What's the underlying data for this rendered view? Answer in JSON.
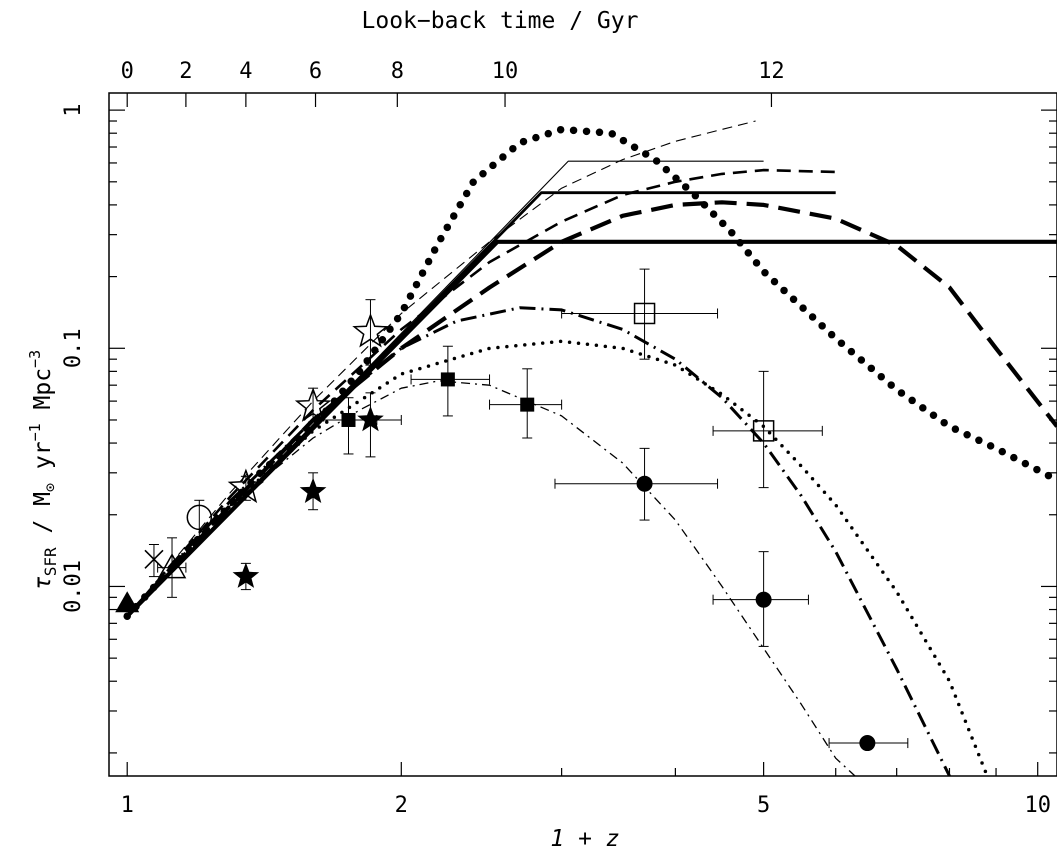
{
  "chart_data": {
    "type": "scatter",
    "title": "",
    "xlabel": "1 + z",
    "ylabel": "τSFR / M⊙ yr⁻¹ Mpc⁻³",
    "ylabel_parts": {
      "symbol": "τ",
      "subscript": "SFR",
      "units_start": " / M",
      "units_sun": "⊙",
      "units_yr": " yr",
      "exp_yr": "−1",
      "units_mpc": " Mpc",
      "exp_mpc": "−3"
    },
    "x2label": "Look−back time / Gyr",
    "x_scale": "log",
    "y_scale": "log",
    "xlim": [
      0.955,
      10.5
    ],
    "ylim": [
      0.0016,
      1.18
    ],
    "x_ticks": [
      1,
      2,
      5,
      10
    ],
    "x_tick_labels": [
      "1",
      "2",
      "5",
      "10"
    ],
    "y_ticks": [
      0.01,
      0.1,
      1
    ],
    "y_tick_labels": [
      "0.01",
      "0.1",
      "1"
    ],
    "top_axis_ticks": [
      {
        "label": "0",
        "one_plus_z": 1.0
      },
      {
        "label": "2",
        "one_plus_z": 1.16
      },
      {
        "label": "4",
        "one_plus_z": 1.35
      },
      {
        "label": "6",
        "one_plus_z": 1.61
      },
      {
        "label": "8",
        "one_plus_z": 1.98
      },
      {
        "label": "10",
        "one_plus_z": 2.6
      },
      {
        "label": "12",
        "one_plus_z": 5.1
      }
    ],
    "series": [
      {
        "marker": "filled-triangle",
        "points": [
          {
            "x": 1.0,
            "y": 0.0085
          }
        ]
      },
      {
        "marker": "cross",
        "points": [
          {
            "x": 1.07,
            "y": 0.013,
            "yerr": [
              0.011,
              0.015
            ]
          }
        ]
      },
      {
        "marker": "open-triangle",
        "points": [
          {
            "x": 1.12,
            "y": 0.012,
            "xerr": [
              1.08,
              1.16
            ],
            "yerr": [
              0.009,
              0.016
            ]
          }
        ]
      },
      {
        "marker": "open-circle",
        "points": [
          {
            "x": 1.2,
            "y": 0.0195,
            "yerr": [
              0.016,
              0.023
            ]
          }
        ]
      },
      {
        "marker": "open-star",
        "points": [
          {
            "x": 1.35,
            "y": 0.026,
            "yerr": [
              0.023,
              0.029
            ]
          },
          {
            "x": 1.6,
            "y": 0.057,
            "yerr": [
              0.049,
              0.068
            ]
          },
          {
            "x": 1.85,
            "y": 0.117,
            "yerr": [
              0.085,
              0.16
            ]
          }
        ]
      },
      {
        "marker": "filled-star",
        "points": [
          {
            "x": 1.35,
            "y": 0.011,
            "yerr": [
              0.0097,
              0.0125
            ]
          },
          {
            "x": 1.6,
            "y": 0.025,
            "yerr": [
              0.021,
              0.03
            ]
          },
          {
            "x": 1.85,
            "y": 0.05,
            "xerr": [
              1.75,
              2.0
            ],
            "yerr": [
              0.035,
              0.065
            ]
          }
        ]
      },
      {
        "marker": "filled-square",
        "points": [
          {
            "x": 1.75,
            "y": 0.05,
            "xerr": [
              1.62,
              1.88
            ],
            "yerr": [
              0.036,
              0.062
            ]
          },
          {
            "x": 2.25,
            "y": 0.074,
            "xerr": [
              2.05,
              2.5
            ],
            "yerr": [
              0.052,
              0.102
            ]
          },
          {
            "x": 2.75,
            "y": 0.058,
            "xerr": [
              2.5,
              3.0
            ],
            "yerr": [
              0.042,
              0.082
            ]
          }
        ]
      },
      {
        "marker": "open-square",
        "points": [
          {
            "x": 3.7,
            "y": 0.14,
            "xerr": [
              3.0,
              4.45
            ],
            "yerr": [
              0.09,
              0.215
            ]
          },
          {
            "x": 5.0,
            "y": 0.045,
            "xerr": [
              4.4,
              5.8
            ],
            "yerr": [
              0.026,
              0.08
            ]
          }
        ]
      },
      {
        "marker": "filled-circle",
        "points": [
          {
            "x": 3.7,
            "y": 0.027,
            "xerr": [
              2.95,
              4.45
            ],
            "yerr": [
              0.019,
              0.038
            ]
          },
          {
            "x": 5.0,
            "y": 0.0088,
            "xerr": [
              4.4,
              5.6
            ],
            "yerr": [
              0.0056,
              0.014
            ]
          },
          {
            "x": 6.5,
            "y": 0.0022,
            "xerr": [
              5.9,
              7.2
            ]
          }
        ]
      }
    ],
    "curves": [
      {
        "style": "solid-thick",
        "points": [
          [
            1.0,
            0.0075
          ],
          [
            2.55,
            0.28
          ],
          [
            10.5,
            0.28
          ]
        ]
      },
      {
        "style": "solid-medium",
        "points": [
          [
            1.0,
            0.0075
          ],
          [
            2.85,
            0.45
          ],
          [
            6.0,
            0.45
          ]
        ]
      },
      {
        "style": "solid-thin",
        "points": [
          [
            1.0,
            0.0075
          ],
          [
            3.05,
            0.61
          ],
          [
            5.0,
            0.61
          ]
        ]
      },
      {
        "style": "thin-dash",
        "points": [
          [
            1.0,
            0.0075
          ],
          [
            1.3,
            0.025
          ],
          [
            1.6,
            0.06
          ],
          [
            2.0,
            0.14
          ],
          [
            2.5,
            0.28
          ],
          [
            3.0,
            0.47
          ],
          [
            3.5,
            0.62
          ],
          [
            4.0,
            0.74
          ],
          [
            4.5,
            0.83
          ],
          [
            4.9,
            0.9
          ]
        ]
      },
      {
        "style": "medium-dash",
        "points": [
          [
            1.0,
            0.0075
          ],
          [
            1.3,
            0.024
          ],
          [
            1.6,
            0.055
          ],
          [
            2.0,
            0.12
          ],
          [
            2.5,
            0.23
          ],
          [
            3.0,
            0.34
          ],
          [
            3.5,
            0.44
          ],
          [
            4.0,
            0.5
          ],
          [
            4.5,
            0.54
          ],
          [
            5.0,
            0.56
          ],
          [
            6.0,
            0.55
          ]
        ]
      },
      {
        "style": "thick-dash",
        "points": [
          [
            1.0,
            0.0075
          ],
          [
            1.3,
            0.022
          ],
          [
            1.6,
            0.05
          ],
          [
            2.0,
            0.1
          ],
          [
            2.5,
            0.18
          ],
          [
            3.0,
            0.28
          ],
          [
            3.5,
            0.36
          ],
          [
            4.0,
            0.4
          ],
          [
            4.5,
            0.41
          ],
          [
            5.0,
            0.4
          ],
          [
            6.0,
            0.35
          ],
          [
            7.0,
            0.27
          ],
          [
            8.0,
            0.18
          ],
          [
            9.0,
            0.1
          ],
          [
            10.5,
            0.047
          ]
        ]
      },
      {
        "style": "big-dot",
        "points": [
          [
            1.0,
            0.0075
          ],
          [
            1.2,
            0.016
          ],
          [
            1.4,
            0.03
          ],
          [
            1.6,
            0.047
          ],
          [
            1.8,
            0.08
          ],
          [
            2.0,
            0.14
          ],
          [
            2.2,
            0.28
          ],
          [
            2.4,
            0.5
          ],
          [
            2.7,
            0.73
          ],
          [
            3.0,
            0.83
          ],
          [
            3.4,
            0.8
          ],
          [
            3.8,
            0.62
          ],
          [
            4.2,
            0.44
          ],
          [
            4.6,
            0.31
          ],
          [
            5.0,
            0.21
          ],
          [
            6.0,
            0.11
          ],
          [
            7.0,
            0.067
          ],
          [
            8.0,
            0.047
          ],
          [
            9.0,
            0.038
          ],
          [
            10.5,
            0.028
          ]
        ]
      },
      {
        "style": "dash-dot",
        "points": [
          [
            1.0,
            0.0075
          ],
          [
            1.3,
            0.023
          ],
          [
            1.6,
            0.05
          ],
          [
            2.0,
            0.1
          ],
          [
            2.3,
            0.13
          ],
          [
            2.7,
            0.148
          ],
          [
            3.0,
            0.145
          ],
          [
            3.5,
            0.12
          ],
          [
            4.0,
            0.09
          ],
          [
            4.5,
            0.062
          ],
          [
            5.0,
            0.04
          ],
          [
            5.5,
            0.024
          ],
          [
            6.0,
            0.014
          ],
          [
            7.0,
            0.0045
          ],
          [
            8.0,
            0.0016
          ]
        ]
      },
      {
        "style": "dotted",
        "points": [
          [
            1.0,
            0.0075
          ],
          [
            1.3,
            0.022
          ],
          [
            1.6,
            0.045
          ],
          [
            2.0,
            0.078
          ],
          [
            2.5,
            0.1
          ],
          [
            3.0,
            0.107
          ],
          [
            3.5,
            0.1
          ],
          [
            4.0,
            0.085
          ],
          [
            4.5,
            0.064
          ],
          [
            5.0,
            0.047
          ],
          [
            5.5,
            0.032
          ],
          [
            6.0,
            0.022
          ],
          [
            7.0,
            0.0095
          ],
          [
            8.0,
            0.004
          ],
          [
            8.8,
            0.0016
          ]
        ]
      },
      {
        "style": "thin-dash-dot",
        "points": [
          [
            1.0,
            0.0075
          ],
          [
            1.3,
            0.022
          ],
          [
            1.6,
            0.042
          ],
          [
            1.8,
            0.055
          ],
          [
            2.0,
            0.068
          ],
          [
            2.2,
            0.073
          ],
          [
            2.5,
            0.07
          ],
          [
            3.0,
            0.052
          ],
          [
            3.5,
            0.033
          ],
          [
            4.0,
            0.019
          ],
          [
            4.5,
            0.01
          ],
          [
            5.0,
            0.0055
          ],
          [
            5.5,
            0.0032
          ],
          [
            6.0,
            0.0019
          ],
          [
            6.3,
            0.0016
          ]
        ]
      }
    ]
  }
}
